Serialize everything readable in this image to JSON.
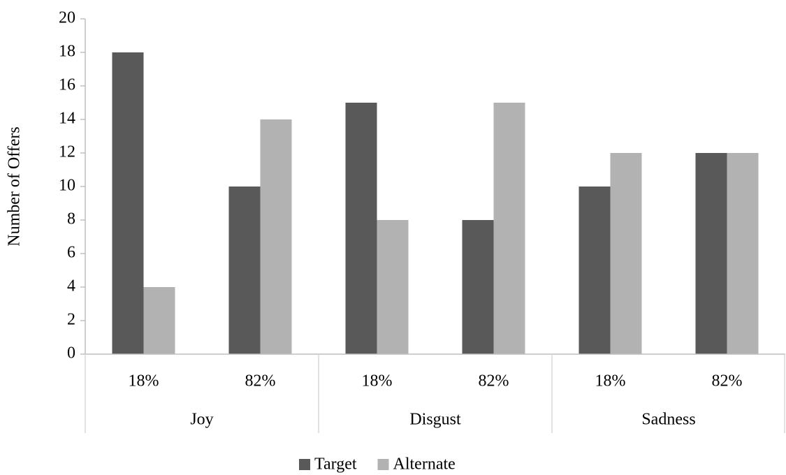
{
  "chart_data": {
    "type": "bar",
    "y_axis_label": "Number of Offers",
    "categories": [
      "18%",
      "82%",
      "18%",
      "82%",
      "18%",
      "82%"
    ],
    "groups": [
      "Joy",
      "Disgust",
      "Sadness"
    ],
    "series": [
      {
        "name": "Target",
        "color": "#595959",
        "values": [
          18,
          10,
          15,
          8,
          10,
          12
        ]
      },
      {
        "name": "Alternate",
        "color": "#b2b2b2",
        "values": [
          4,
          14,
          8,
          15,
          12,
          12
        ]
      }
    ],
    "ylim": [
      0,
      20
    ],
    "yticks": [
      0,
      2,
      4,
      6,
      8,
      10,
      12,
      14,
      16,
      18,
      20
    ],
    "grid": false,
    "legend": "bottom"
  }
}
